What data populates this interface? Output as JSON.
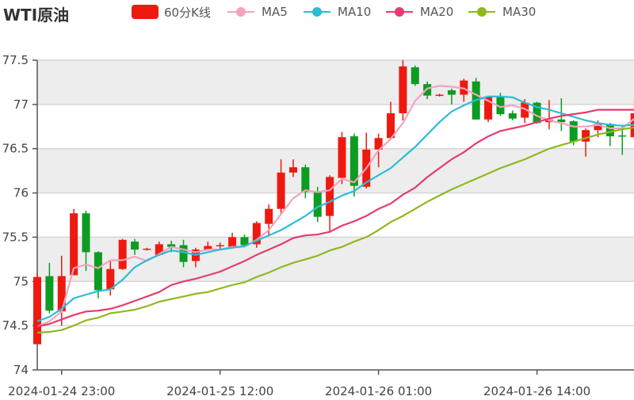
{
  "chart_data": {
    "type": "candlestick",
    "title": "WTI原油",
    "ylim": [
      74,
      77.5
    ],
    "yticks": [
      "74",
      "74.5",
      "75",
      "75.5",
      "76",
      "76.5",
      "77",
      "77.5"
    ],
    "xtick_labels": [
      "2024-01-24 23:00",
      "2024-01-25 12:00",
      "2024-01-26 01:00",
      "2024-01-26 14:00"
    ],
    "grid": true,
    "legend_position": "top",
    "colors": {
      "up": "#ee1a10",
      "down": "#0c9c22",
      "MA5": "#f4a3bd",
      "MA10": "#2cbcd6",
      "MA20": "#e33d6e",
      "MA30": "#90b820",
      "band": "#ededed"
    },
    "start": "2024-01-24 21:00",
    "interval": "1h",
    "candle_series_name": "60分K线",
    "ohlc": [
      [
        74.29,
        75.05,
        74.29,
        75.09
      ],
      [
        75.06,
        74.67,
        74.64,
        75.21
      ],
      [
        74.66,
        75.06,
        74.5,
        75.29
      ],
      [
        75.07,
        75.77,
        75.07,
        75.82
      ],
      [
        75.77,
        75.33,
        75.12,
        75.8
      ],
      [
        75.33,
        74.9,
        74.81,
        75.34
      ],
      [
        74.91,
        75.14,
        74.84,
        75.23
      ],
      [
        75.14,
        75.47,
        75.13,
        75.48
      ],
      [
        75.45,
        75.36,
        75.3,
        75.48
      ],
      [
        75.36,
        75.37,
        75.35,
        75.38
      ],
      [
        75.3,
        75.42,
        75.29,
        75.45
      ],
      [
        75.42,
        75.39,
        75.33,
        75.46
      ],
      [
        75.41,
        75.22,
        75.16,
        75.47
      ],
      [
        75.23,
        75.36,
        75.16,
        75.38
      ],
      [
        75.36,
        75.4,
        75.35,
        75.45
      ],
      [
        75.4,
        75.41,
        75.35,
        75.44
      ],
      [
        75.39,
        75.5,
        75.38,
        75.55
      ],
      [
        75.5,
        75.41,
        75.39,
        75.53
      ],
      [
        75.42,
        75.66,
        75.38,
        75.68
      ],
      [
        75.65,
        75.82,
        75.51,
        75.87
      ],
      [
        75.82,
        76.23,
        75.76,
        76.38
      ],
      [
        76.23,
        76.29,
        76.18,
        76.38
      ],
      [
        76.29,
        76.01,
        75.94,
        76.32
      ],
      [
        76.02,
        75.73,
        75.67,
        76.07
      ],
      [
        75.74,
        76.18,
        75.55,
        76.2
      ],
      [
        76.17,
        76.63,
        76.1,
        76.69
      ],
      [
        76.64,
        76.08,
        75.96,
        76.67
      ],
      [
        76.07,
        76.49,
        76.05,
        76.68
      ],
      [
        76.49,
        76.62,
        76.29,
        76.67
      ],
      [
        76.62,
        76.9,
        76.61,
        77.03
      ],
      [
        76.9,
        77.43,
        76.82,
        77.5
      ],
      [
        77.42,
        77.23,
        77.21,
        77.44
      ],
      [
        77.23,
        77.1,
        77.06,
        77.26
      ],
      [
        77.1,
        77.11,
        77.09,
        77.12
      ],
      [
        77.16,
        77.11,
        77.0,
        77.18
      ],
      [
        77.11,
        77.27,
        77.03,
        77.29
      ],
      [
        77.26,
        76.83,
        76.83,
        77.3
      ],
      [
        76.83,
        77.09,
        76.8,
        77.1
      ],
      [
        77.09,
        76.89,
        76.87,
        77.13
      ],
      [
        76.9,
        76.84,
        76.82,
        76.93
      ],
      [
        76.85,
        77.02,
        76.79,
        77.06
      ],
      [
        77.02,
        76.79,
        76.78,
        77.03
      ],
      [
        76.8,
        76.83,
        76.72,
        77.05
      ],
      [
        76.83,
        76.8,
        76.7,
        77.07
      ],
      [
        76.81,
        76.58,
        76.54,
        76.82
      ],
      [
        76.58,
        76.71,
        76.41,
        76.73
      ],
      [
        76.71,
        76.78,
        76.63,
        76.82
      ],
      [
        76.78,
        76.64,
        76.53,
        76.79
      ],
      [
        76.65,
        76.64,
        76.43,
        76.77
      ],
      [
        76.63,
        76.9,
        76.62,
        77.03
      ]
    ],
    "ohlc_order": [
      "open",
      "close",
      "low",
      "high"
    ],
    "series": [
      {
        "name": "MA5",
        "values": [
          74.49,
          74.55,
          74.66,
          75.15,
          75.19,
          75.15,
          75.24,
          75.24,
          75.28,
          75.23,
          75.31,
          75.39,
          75.36,
          75.33,
          75.36,
          75.36,
          75.39,
          75.39,
          75.47,
          75.58,
          75.76,
          75.94,
          76.03,
          76.01,
          76.03,
          76.16,
          76.12,
          76.28,
          76.48,
          76.61,
          76.79,
          77.04,
          77.18,
          77.21,
          77.2,
          77.18,
          77.11,
          77.04,
          76.97,
          76.99,
          76.95,
          76.87,
          76.82,
          76.79,
          76.75,
          76.75,
          76.77,
          76.73,
          76.73,
          76.84
        ]
      },
      {
        "name": "MA10",
        "values": [
          74.55,
          74.6,
          74.69,
          74.81,
          74.85,
          74.89,
          74.91,
          75.02,
          75.16,
          75.24,
          75.3,
          75.35,
          75.33,
          75.3,
          75.33,
          75.36,
          75.38,
          75.4,
          75.46,
          75.52,
          75.58,
          75.66,
          75.74,
          75.84,
          75.9,
          75.97,
          76.02,
          76.12,
          76.2,
          76.28,
          76.4,
          76.52,
          76.66,
          76.8,
          76.92,
          76.99,
          77.05,
          77.09,
          77.09,
          77.08,
          77.02,
          76.97,
          76.94,
          76.9,
          76.86,
          76.82,
          76.79,
          76.77,
          76.76,
          76.77
        ]
      },
      {
        "name": "MA20",
        "values": [
          74.49,
          74.52,
          74.57,
          74.62,
          74.66,
          74.67,
          74.69,
          74.73,
          74.78,
          74.83,
          74.88,
          74.96,
          75.0,
          75.03,
          75.07,
          75.11,
          75.17,
          75.23,
          75.3,
          75.36,
          75.42,
          75.49,
          75.52,
          75.53,
          75.56,
          75.63,
          75.68,
          75.74,
          75.82,
          75.88,
          75.98,
          76.06,
          76.18,
          76.28,
          76.38,
          76.46,
          76.56,
          76.64,
          76.7,
          76.73,
          76.76,
          76.8,
          76.84,
          76.87,
          76.89,
          76.91,
          76.94,
          76.94,
          76.94,
          76.94
        ]
      },
      {
        "name": "MA30",
        "values": [
          74.42,
          74.43,
          74.45,
          74.5,
          74.56,
          74.59,
          74.64,
          74.66,
          74.68,
          74.72,
          74.77,
          74.8,
          74.83,
          74.86,
          74.88,
          74.92,
          74.96,
          74.99,
          75.05,
          75.1,
          75.16,
          75.21,
          75.25,
          75.29,
          75.35,
          75.39,
          75.45,
          75.5,
          75.58,
          75.67,
          75.74,
          75.82,
          75.9,
          75.97,
          76.04,
          76.1,
          76.16,
          76.22,
          76.28,
          76.33,
          76.38,
          76.44,
          76.5,
          76.54,
          76.58,
          76.62,
          76.66,
          76.69,
          76.72,
          76.74
        ]
      }
    ]
  }
}
